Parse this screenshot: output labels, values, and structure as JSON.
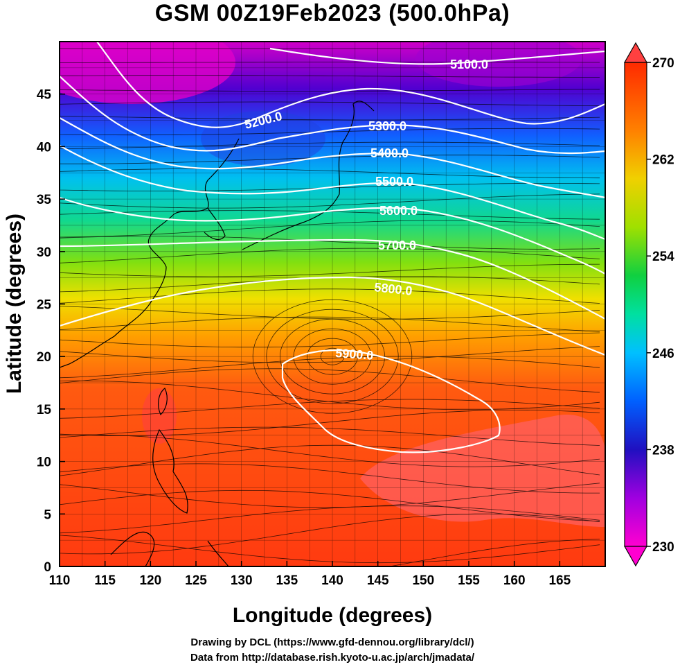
{
  "title": "GSM 00Z19Feb2023 (500.0hPa)",
  "xlabel": "Longitude (degrees)",
  "ylabel": "Latitude  (degrees)",
  "credits": {
    "line1": "Drawing by DCL (https://www.gfd-dennou.org/library/dcl/)",
    "line2": "Data from http://database.rish.kyoto-u.ac.jp/arch/jmadata/"
  },
  "map": {
    "lon_range": [
      110,
      170
    ],
    "lat_range": [
      0,
      50
    ],
    "lon_ticks": [
      "110",
      "115",
      "120",
      "125",
      "130",
      "135",
      "140",
      "145",
      "150",
      "155",
      "160",
      "165"
    ],
    "lat_ticks": [
      "0",
      "5",
      "10",
      "15",
      "20",
      "25",
      "30",
      "35",
      "40",
      "45"
    ]
  },
  "colorbar": {
    "min": 230,
    "max": 270,
    "labels": [
      "270",
      "262",
      "254",
      "246",
      "238",
      "230"
    ],
    "colors": [
      "#ff00d0",
      "#a000e0",
      "#3000d0",
      "#0050ff",
      "#00b0ff",
      "#00e0e0",
      "#00d060",
      "#40d000",
      "#b0e000",
      "#f0d000",
      "#ff9000",
      "#ff5000",
      "#ff2000"
    ]
  },
  "contours": [
    {
      "label": "5100.0"
    },
    {
      "label": "5200.0"
    },
    {
      "label": "5300.0"
    },
    {
      "label": "5400.0"
    },
    {
      "label": "5500.0"
    },
    {
      "label": "5600.0"
    },
    {
      "label": "5700.0"
    },
    {
      "label": "5800.0"
    },
    {
      "label": "5900.0"
    }
  ]
}
